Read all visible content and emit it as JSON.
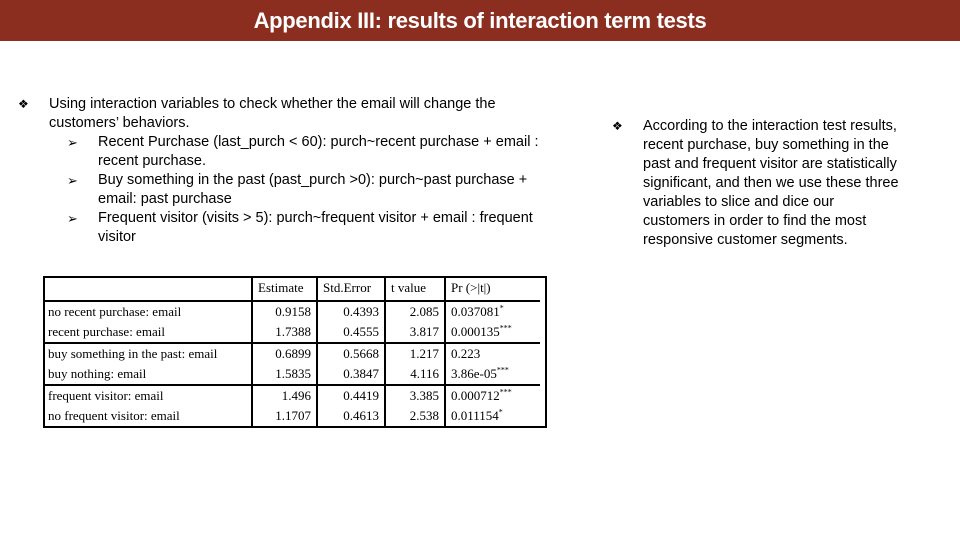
{
  "title": "Appendix III: results of interaction term tests",
  "left": {
    "bullet_symbol": "❖",
    "arrow_symbol": "➢",
    "main_bullet": "Using interaction variables to check whether the email will change the customers’ behaviors.",
    "sub_items": [
      "Recent Purchase (last_purch < 60): purch~recent purchase + email : recent purchase.",
      "Buy something in the past (past_purch >0): purch~past purchase + email: past purchase",
      "Frequent visitor (visits > 5): purch~frequent visitor + email : frequent visitor"
    ]
  },
  "right": {
    "bullet_symbol": "❖",
    "text": "According to the interaction test results, recent purchase, buy something in the past and frequent visitor are statistically significant, and then we use these three variables to slice and dice our customers in order to find the most responsive customer segments."
  },
  "table": {
    "headers": [
      "",
      "Estimate",
      "Std.Error",
      "t value",
      "Pr (>|t|)"
    ],
    "groups": [
      [
        {
          "label": "no recent purchase: email",
          "estimate": "0.9158",
          "std_error": "0.4393",
          "t_value": "2.085",
          "p_value": "0.037081",
          "stars": "*"
        },
        {
          "label": "recent purchase: email",
          "estimate": "1.7388",
          "std_error": "0.4555",
          "t_value": "3.817",
          "p_value": "0.000135",
          "stars": "***"
        }
      ],
      [
        {
          "label": "buy something in the past: email",
          "estimate": "0.6899",
          "std_error": "0.5668",
          "t_value": "1.217",
          "p_value": "0.223",
          "stars": ""
        },
        {
          "label": "buy nothing: email",
          "estimate": "1.5835",
          "std_error": "0.3847",
          "t_value": "4.116",
          "p_value": "3.86e-05",
          "stars": "***"
        }
      ],
      [
        {
          "label": "frequent visitor: email",
          "estimate": "1.496",
          "std_error": "0.4419",
          "t_value": "3.385",
          "p_value": "0.000712",
          "stars": "***"
        },
        {
          "label": "no frequent visitor: email",
          "estimate": "1.1707",
          "std_error": "0.4613",
          "t_value": "2.538",
          "p_value": "0.011154",
          "stars": "*"
        }
      ]
    ]
  }
}
